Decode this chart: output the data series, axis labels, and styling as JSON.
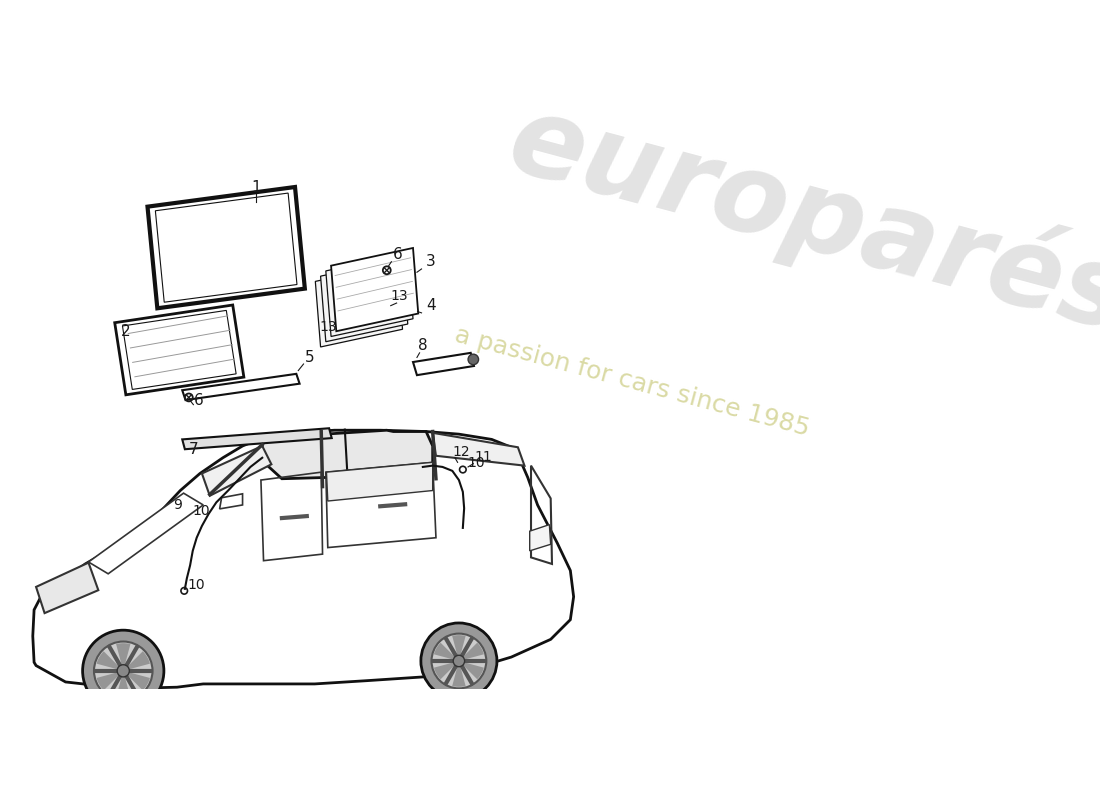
{
  "background_color": "#ffffff",
  "watermark_text1": "europarés",
  "watermark_text2": "a passion for cars since 1985",
  "line_color": "#1a1a1a",
  "watermark_color1": "#c8c8c8",
  "watermark_color2": "#d8d8a0"
}
